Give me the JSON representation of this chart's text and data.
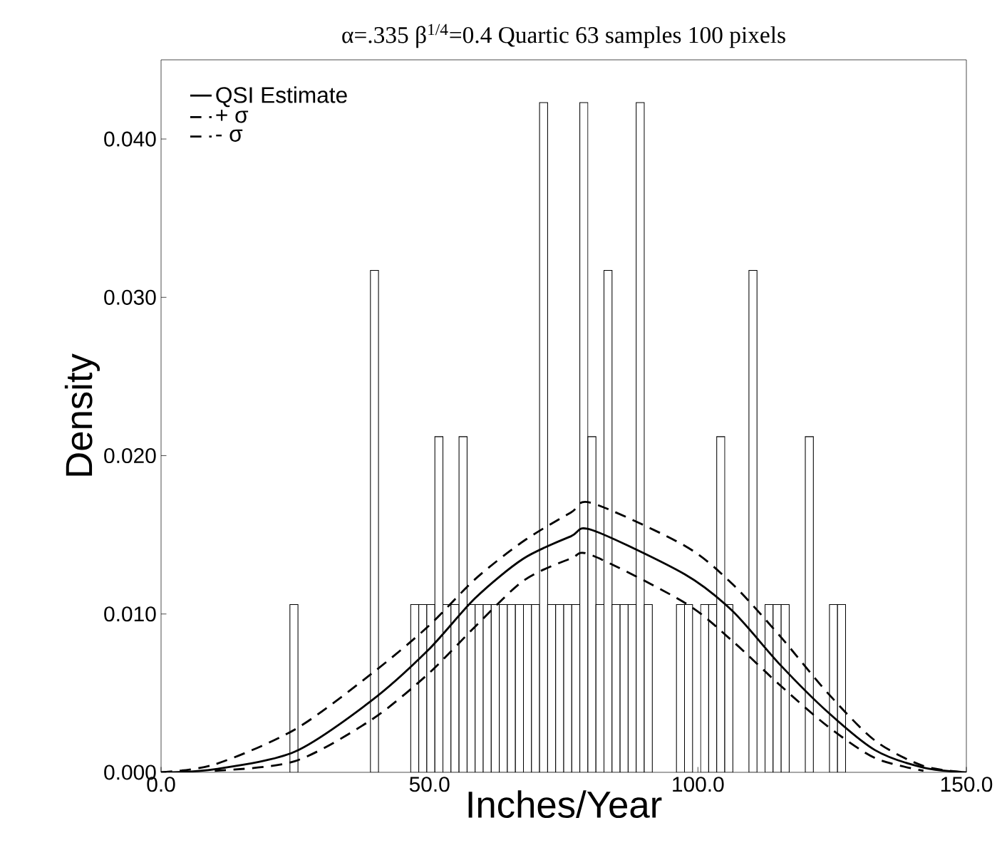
{
  "chart_data": {
    "type": "histogram",
    "title": "α=.335 β$^{1/4}$=0.4 Quartic 63 samples 100 pixels",
    "xlabel": "Inches/Year",
    "ylabel": "Density",
    "bins": [
      24,
      25.5,
      27,
      28.5,
      30,
      31.5,
      33,
      34.5,
      36,
      37.5,
      39,
      40.5,
      42,
      43.5,
      45,
      46.5,
      48,
      49.5,
      51,
      52.5,
      54,
      55.5,
      57,
      58.5,
      60,
      61.5,
      63,
      64.5,
      66,
      67.5,
      69,
      70.5,
      72,
      73.5,
      75,
      76.5,
      78,
      79.5,
      81,
      82.5,
      84,
      85.5,
      87,
      88.5,
      90,
      91.5,
      93,
      94.5,
      96,
      97.5,
      99,
      100.5,
      102,
      103.5,
      105,
      106.5,
      108,
      109.5,
      111,
      112.5,
      114,
      115.5,
      117,
      118.5,
      120,
      121.5,
      123,
      124.5,
      126,
      127.5
    ],
    "values": [
      0.0106,
      null,
      null,
      null,
      null,
      null,
      null,
      null,
      null,
      null,
      0.0317,
      null,
      null,
      null,
      null,
      0.0106,
      0.0106,
      0.0106,
      0.0212,
      0.0106,
      0.0106,
      0.0212,
      0.0106,
      0.0106,
      0.0106,
      0.0106,
      0.0106,
      0.0106,
      0.0106,
      0.0106,
      0.0106,
      0.0423,
      0.0106,
      0.0106,
      0.0106,
      0.0106,
      0.0423,
      0.0212,
      0.0106,
      0.0317,
      0.0106,
      0.0106,
      0.0106,
      0.0423,
      0.0106,
      null,
      null,
      null,
      0.0106,
      0.0106,
      null,
      0.0106,
      0.0106,
      0.0212,
      0.0106,
      null,
      null,
      0.0317,
      null,
      0.0106,
      0.0106,
      0.0106,
      null,
      null,
      0.0212,
      null,
      null,
      0.0106,
      0.0106
    ],
    "color": "#ffffff",
    "series": [
      {
        "name": "QSI Estimate",
        "type": "line",
        "color": "#000000",
        "line_style": "solid",
        "x": [
          0,
          10,
          24.9,
          39.1,
          49.7,
          58.5,
          67.5,
          76.3,
          80.3,
          97.6,
          106.4,
          115.3,
          124.2,
          133,
          142,
          150
        ],
        "values": [
          0,
          0.0002,
          0.0013,
          0.0045,
          0.0077,
          0.011,
          0.0135,
          0.0149,
          0.0153,
          0.0125,
          0.0102,
          0.0068,
          0.0038,
          0.0014,
          0.0003,
          0
        ]
      },
      {
        "name": "+ σ",
        "type": "line",
        "color": "#000000",
        "line_style": "dashed",
        "x": [
          0,
          10,
          24.9,
          39.1,
          49.7,
          58.5,
          67.5,
          76.3,
          80.3,
          97.6,
          106.4,
          115.3,
          124.2,
          133,
          142,
          150
        ],
        "values": [
          0,
          0.0005,
          0.0027,
          0.0062,
          0.0092,
          0.0122,
          0.0146,
          0.0164,
          0.017,
          0.0143,
          0.0119,
          0.0086,
          0.005,
          0.002,
          0.0004,
          0
        ]
      },
      {
        "name": "- σ",
        "type": "line",
        "color": "#000000",
        "line_style": "dashed",
        "x": [
          10,
          24.9,
          39.1,
          49.7,
          58.5,
          67.5,
          76.3,
          80.3,
          97.6,
          106.4,
          115.3,
          124.2,
          133,
          142
        ],
        "values": [
          0.0001,
          0.0007,
          0.0033,
          0.0062,
          0.0092,
          0.0121,
          0.0135,
          0.0137,
          0.0107,
          0.0083,
          0.0055,
          0.0029,
          0.0009,
          0.0001
        ]
      }
    ],
    "xlim": [
      0,
      150
    ],
    "ylim": [
      0,
      0.045
    ],
    "xticks": [
      {
        "value": 0,
        "label": "0.0"
      },
      {
        "value": 50,
        "label": "50.0"
      },
      {
        "value": 100,
        "label": "100.0"
      },
      {
        "value": 150,
        "label": "150.0"
      }
    ],
    "yticks": [
      {
        "value": 0,
        "label": "0.000"
      },
      {
        "value": 0.01,
        "label": "0.010"
      },
      {
        "value": 0.02,
        "label": "0.020"
      },
      {
        "value": 0.03,
        "label": "0.030"
      },
      {
        "value": 0.04,
        "label": "0.040"
      }
    ],
    "legend": "top left",
    "grid": false
  }
}
